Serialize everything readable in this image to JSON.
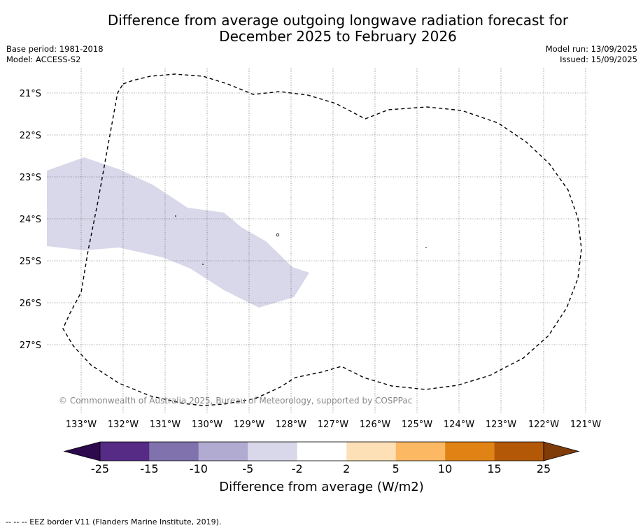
{
  "title_line1": "Difference from average outgoing longwave radiation forecast for",
  "title_line2": "December 2025 to February 2026",
  "base_period": "Base period: 1981-2018",
  "model": "Model: ACCESS-S2",
  "model_run": "Model run: 13/09/2025",
  "issued": "Issued: 15/09/2025",
  "lat_labels": [
    "21°S",
    "22°S",
    "23°S",
    "24°S",
    "25°S",
    "26°S",
    "27°S"
  ],
  "lon_labels": [
    "133°W",
    "132°W",
    "131°W",
    "130°W",
    "129°W",
    "128°W",
    "127°W",
    "126°W",
    "125°W",
    "124°W",
    "123°W",
    "122°W",
    "121°W"
  ],
  "copyright": "© Commonwealth of Australia 2025, Bureau of Meteorology, supported by COSPPac",
  "colorbar": {
    "title": "Difference from average (W/m2)",
    "tick_labels": [
      "-25",
      "-15",
      "-10",
      "-5",
      "-2",
      "2",
      "5",
      "10",
      "15",
      "25"
    ],
    "colors": [
      "#2d0a4e",
      "#552b85",
      "#7f72ad",
      "#b1abd2",
      "#d9d8ea",
      "#ffffff",
      "#fee0b6",
      "#fdb863",
      "#e08214",
      "#b35806",
      "#7f3b08"
    ]
  },
  "anomaly_fill_color": "#d9d8ea",
  "footer": "--  --  -- EEZ border V11 (Flanders Marine Institute, 2019)."
}
